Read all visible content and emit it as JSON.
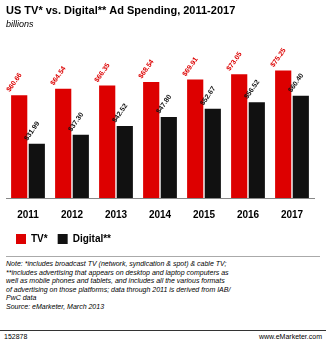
{
  "chart_data": {
    "type": "bar",
    "title": "US TV* vs. Digital** Ad Spending, 2011-2017",
    "subtitle": "billions",
    "categories": [
      "2011",
      "2012",
      "2013",
      "2014",
      "2015",
      "2016",
      "2017"
    ],
    "series": [
      {
        "name": "TV*",
        "color": "#dd0000",
        "values": [
          60.66,
          64.54,
          66.35,
          68.54,
          69.91,
          73.05,
          75.25
        ],
        "value_labels": [
          "$60.66",
          "$64.54",
          "$66.35",
          "$68.54",
          "$69.91",
          "$73.05",
          "$75.25"
        ]
      },
      {
        "name": "Digital**",
        "color": "#111111",
        "values": [
          31.99,
          37.3,
          42.52,
          47.8,
          52.67,
          56.52,
          60.4
        ],
        "value_labels": [
          "$31.99",
          "$37.30",
          "$42.52",
          "$47.80",
          "$52.67",
          "$56.52",
          "$60.40"
        ]
      }
    ],
    "ylim": [
      0,
      85
    ],
    "grid": false,
    "legend": "bottom",
    "data_labels": true,
    "tick_labels": "x",
    "annotations": [
      "Note: *includes broadcast TV (network, syndication & spot) & cable TV;",
      "**includes advertising that appears on desktop and laptop computers as",
      "well as mobile phones and tablets, and includes all the various formats",
      "of advertising on those platforms; data through 2011 is derived from IAB/",
      "PwC data",
      "Source: eMarketer, March 2013"
    ],
    "footer": [
      "152878",
      "www.eMarketer.com"
    ]
  }
}
